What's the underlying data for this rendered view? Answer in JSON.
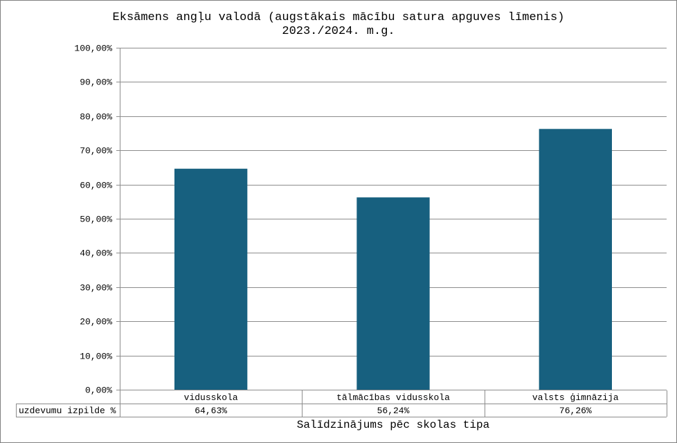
{
  "chart_data": {
    "type": "bar",
    "title_line1": "Eksāmens angļu valodā (augstākais mācību satura apguves līmenis)",
    "title_line2": "2023./2024. m.g.",
    "xlabel": "Salīdzinājums pēc skolas tipa",
    "ylabel": "",
    "categories": [
      "vidusskola",
      "tālmācības vidusskola",
      "valsts ģimnāzija"
    ],
    "series": [
      {
        "name": "uzdevumu izpilde %",
        "values": [
          64.63,
          56.24,
          76.26
        ],
        "value_labels": [
          "64,63%",
          "56,24%",
          "76,26%"
        ],
        "color": "#17607f"
      }
    ],
    "ylim": [
      0,
      100
    ],
    "yticks": [
      0,
      10,
      20,
      30,
      40,
      50,
      60,
      70,
      80,
      90,
      100
    ],
    "ytick_labels": [
      "0,00%",
      "10,00%",
      "20,00%",
      "30,00%",
      "40,00%",
      "50,00%",
      "60,00%",
      "70,00%",
      "80,00%",
      "90,00%",
      "100,00%"
    ],
    "grid": true,
    "legend": "data-table",
    "colors": {
      "bar": "#17607f",
      "grid": "#8c8c8c",
      "text": "#000000"
    }
  }
}
